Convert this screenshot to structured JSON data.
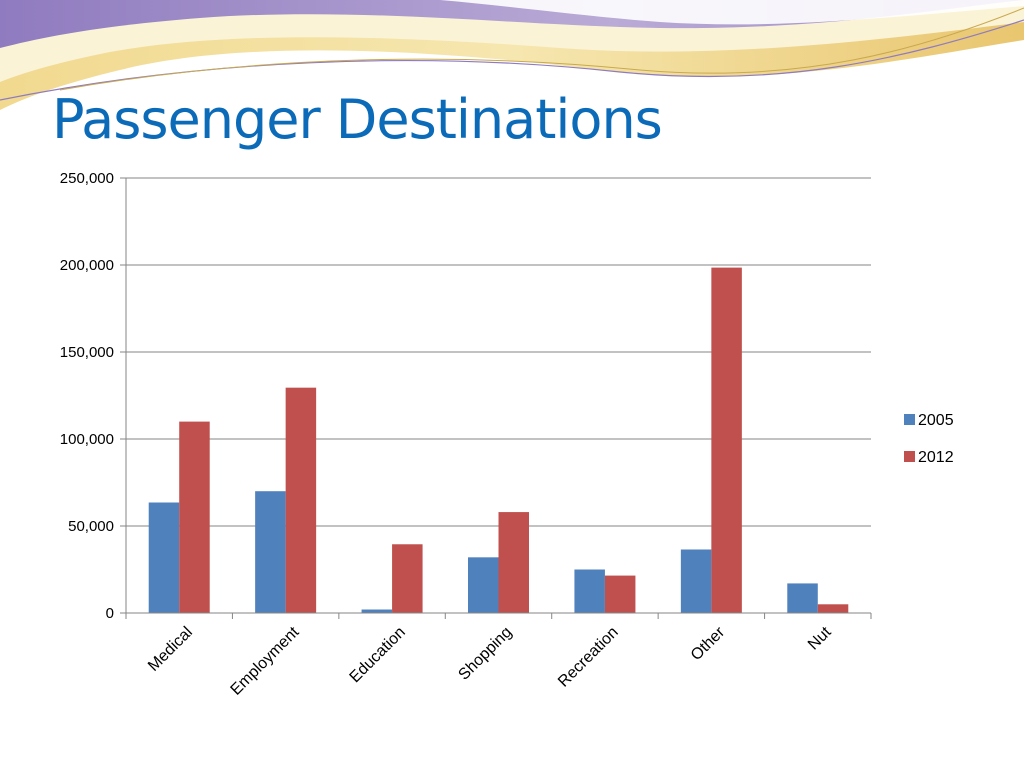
{
  "slide": {
    "title": "Passenger Destinations"
  },
  "theme": {
    "title_color": "#0b6bb8",
    "wave_gold": "#e8c873",
    "wave_purple": "#a593c8",
    "wave_cream": "#f6ecc4"
  },
  "chart_data": {
    "type": "bar",
    "categories": [
      "Medical",
      "Employment",
      "Education",
      "Shopping",
      "Recreation",
      "Other",
      "Nut"
    ],
    "series": [
      {
        "name": "2005",
        "color": "#4f81bd",
        "values": [
          63500,
          70000,
          2000,
          32000,
          25000,
          36500,
          17000
        ]
      },
      {
        "name": "2012",
        "color": "#c0504d",
        "values": [
          110000,
          129500,
          39500,
          58000,
          21500,
          198500,
          5000
        ]
      }
    ],
    "ylim": [
      0,
      250000
    ],
    "yticks": [
      0,
      50000,
      100000,
      150000,
      200000,
      250000
    ],
    "ytick_labels": [
      "0",
      "50,000",
      "100,000",
      "150,000",
      "200,000",
      "250,000"
    ],
    "grid": true,
    "legend_position": "right"
  }
}
